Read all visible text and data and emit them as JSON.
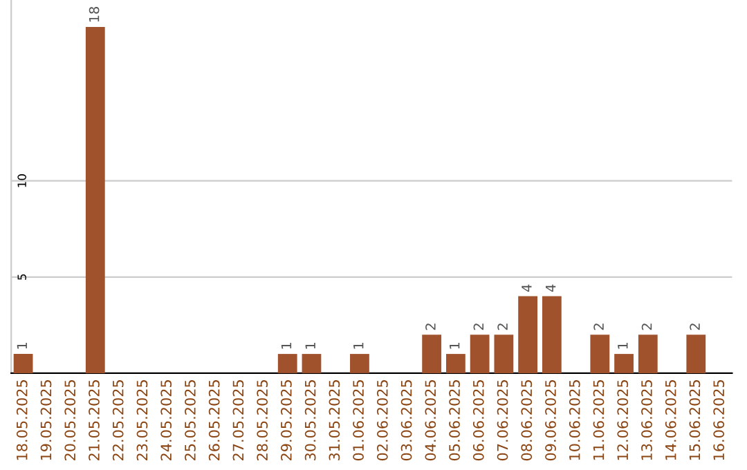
{
  "chart_data": {
    "type": "bar",
    "categories": [
      "18.05.2025",
      "19.05.2025",
      "20.05.2025",
      "21.05.2025",
      "22.05.2025",
      "23.05.2025",
      "24.05.2025",
      "25.05.2025",
      "26.05.2025",
      "27.05.2025",
      "28.05.2025",
      "29.05.2025",
      "30.05.2025",
      "31.05.2025",
      "01.06.2025",
      "02.06.2025",
      "03.06.2025",
      "04.06.2025",
      "05.06.2025",
      "06.06.2025",
      "07.06.2025",
      "08.06.2025",
      "09.06.2025",
      "10.06.2025",
      "11.06.2025",
      "12.06.2025",
      "13.06.2025",
      "14.06.2025",
      "15.06.2025",
      "16.06.2025"
    ],
    "values": [
      1,
      0,
      0,
      18,
      0,
      0,
      0,
      0,
      0,
      0,
      0,
      1,
      1,
      0,
      1,
      0,
      0,
      2,
      1,
      2,
      2,
      4,
      4,
      0,
      2,
      1,
      2,
      0,
      2,
      0
    ],
    "value_labels": [
      "1",
      null,
      null,
      "18",
      null,
      null,
      null,
      null,
      null,
      null,
      null,
      "1",
      "1",
      null,
      "1",
      null,
      null,
      "2",
      "1",
      "2",
      "2",
      "4",
      "4",
      null,
      "2",
      "1",
      "2",
      null,
      "2",
      null
    ],
    "color": "#a0522d",
    "ylim": [
      0,
      19.4
    ],
    "yticks": [
      5,
      10
    ],
    "grid": "y"
  }
}
